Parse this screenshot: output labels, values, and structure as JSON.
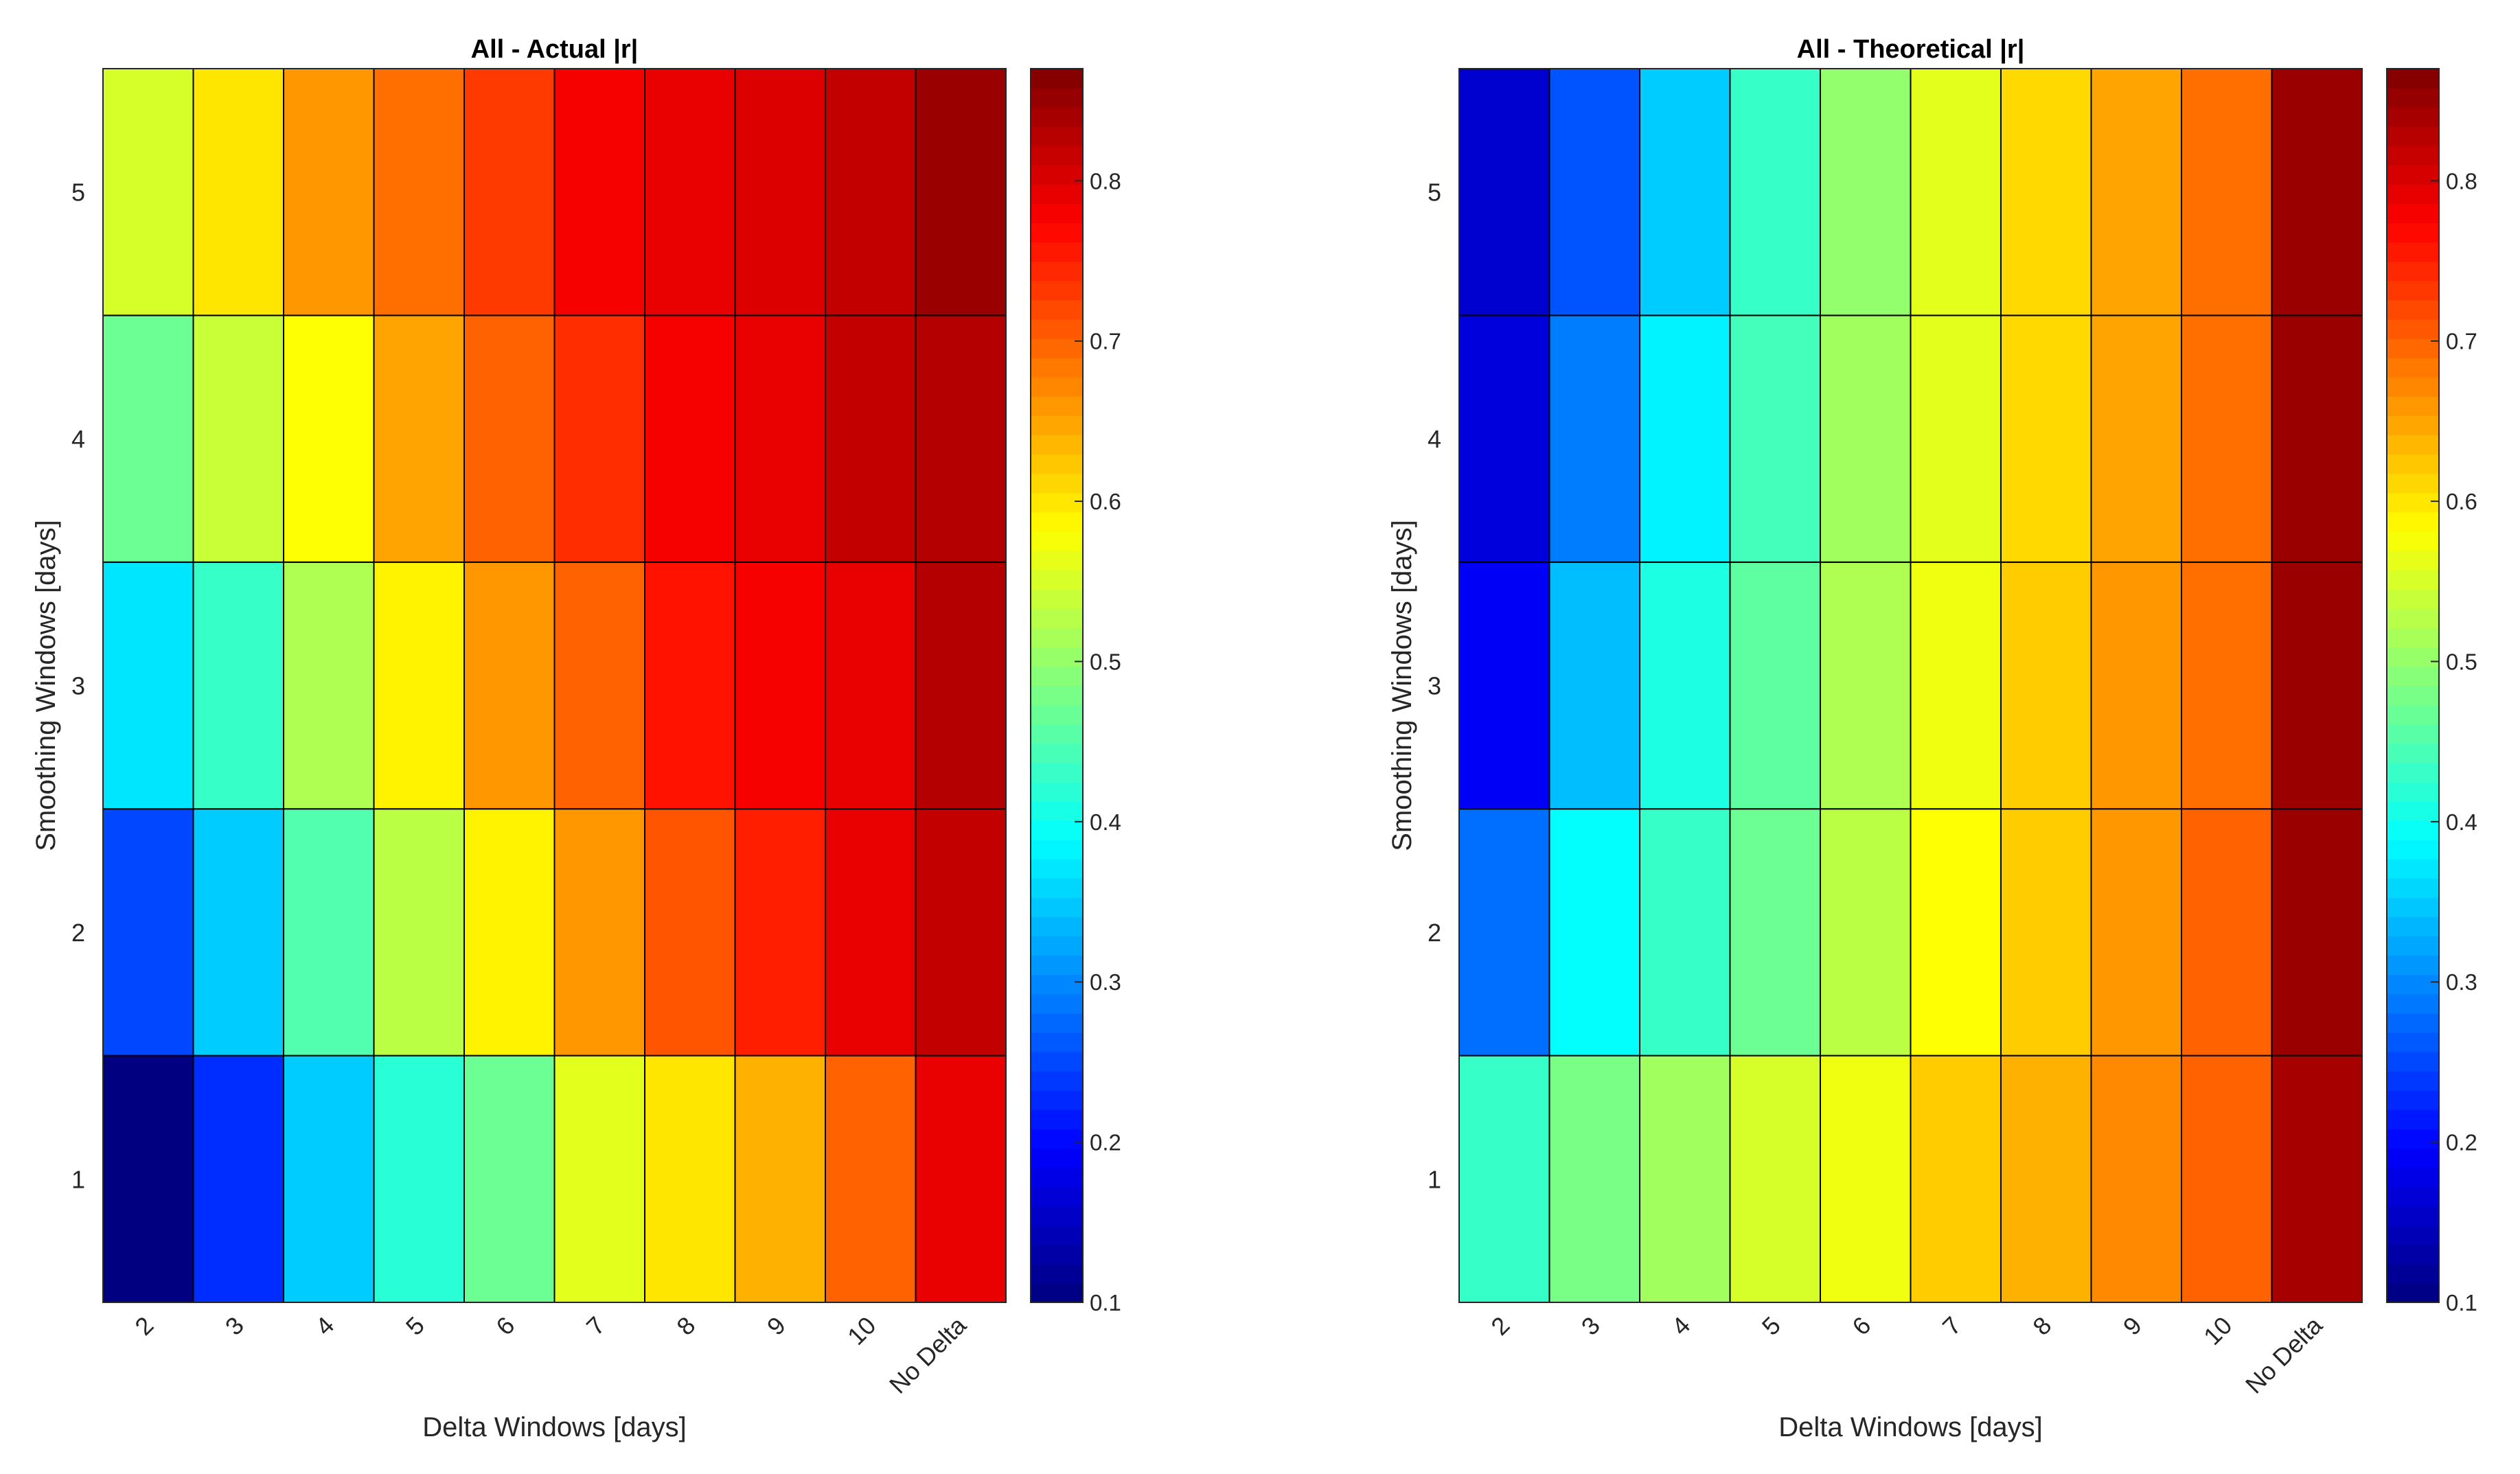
{
  "chart_data": [
    {
      "type": "heatmap",
      "title": "All - Actual |r|",
      "xlabel": "Delta Windows [days]",
      "ylabel": "Smoothing Windows [days]",
      "x_categories": [
        "2",
        "3",
        "4",
        "5",
        "6",
        "7",
        "8",
        "9",
        "10",
        "No Delta"
      ],
      "y_categories": [
        "1",
        "2",
        "3",
        "4",
        "5"
      ],
      "values": [
        [
          0.1,
          0.23,
          0.35,
          0.42,
          0.47,
          0.56,
          0.6,
          0.64,
          0.7,
          0.79
        ],
        [
          0.25,
          0.35,
          0.45,
          0.53,
          0.59,
          0.66,
          0.71,
          0.75,
          0.79,
          0.82
        ],
        [
          0.37,
          0.43,
          0.52,
          0.59,
          0.66,
          0.7,
          0.76,
          0.78,
          0.79,
          0.83
        ],
        [
          0.47,
          0.54,
          0.58,
          0.65,
          0.7,
          0.74,
          0.78,
          0.79,
          0.82,
          0.83
        ],
        [
          0.55,
          0.6,
          0.66,
          0.69,
          0.73,
          0.78,
          0.79,
          0.8,
          0.82,
          0.85
        ]
      ],
      "colorbar": {
        "ticks": [
          "0.1",
          "0.2",
          "0.3",
          "0.4",
          "0.5",
          "0.6",
          "0.7",
          "0.8"
        ],
        "range": [
          0.1,
          0.87
        ],
        "colormap": "jet"
      }
    },
    {
      "type": "heatmap",
      "title": "All - Theoretical |r|",
      "xlabel": "Delta Windows [days]",
      "ylabel": "Smoothing Windows [days]",
      "x_categories": [
        "2",
        "3",
        "4",
        "5",
        "6",
        "7",
        "8",
        "9",
        "10",
        "No Delta"
      ],
      "y_categories": [
        "1",
        "2",
        "3",
        "4",
        "5"
      ],
      "values": [
        [
          0.43,
          0.48,
          0.51,
          0.55,
          0.57,
          0.62,
          0.64,
          0.67,
          0.7,
          0.84
        ],
        [
          0.28,
          0.39,
          0.43,
          0.47,
          0.53,
          0.58,
          0.62,
          0.66,
          0.7,
          0.85
        ],
        [
          0.19,
          0.34,
          0.41,
          0.46,
          0.52,
          0.57,
          0.62,
          0.66,
          0.69,
          0.85
        ],
        [
          0.17,
          0.29,
          0.38,
          0.44,
          0.51,
          0.56,
          0.61,
          0.65,
          0.69,
          0.85
        ],
        [
          0.16,
          0.26,
          0.35,
          0.43,
          0.5,
          0.56,
          0.61,
          0.65,
          0.69,
          0.85
        ]
      ],
      "colorbar": {
        "ticks": [
          "0.1",
          "0.2",
          "0.3",
          "0.4",
          "0.5",
          "0.6",
          "0.7",
          "0.8"
        ],
        "range": [
          0.1,
          0.87
        ],
        "colormap": "jet"
      }
    }
  ]
}
